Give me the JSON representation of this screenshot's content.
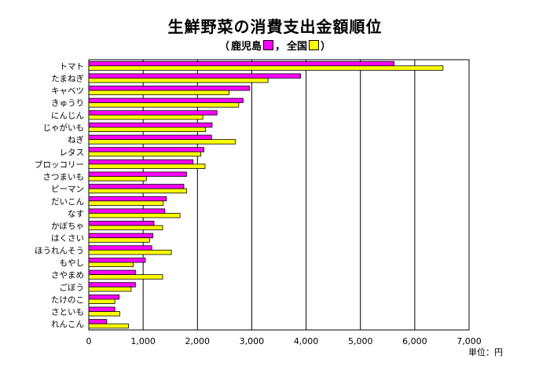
{
  "chart_data": {
    "type": "bar",
    "orientation": "horizontal",
    "title": "生鮮野菜の消費支出金額順位",
    "subtitle_open": "（",
    "subtitle_series1": "鹿児島",
    "subtitle_sep": "，",
    "subtitle_series2": "全国",
    "subtitle_close": "）",
    "categories": [
      "トマト",
      "たまねぎ",
      "キャベツ",
      "きゅうり",
      "にんじん",
      "じゃがいも",
      "ねぎ",
      "レタス",
      "ブロッコリー",
      "さつまいも",
      "ピーマン",
      "だいこん",
      "なす",
      "かぼちゃ",
      "はくさい",
      "ほうれんそう",
      "もやし",
      "さやまめ",
      "ごぼう",
      "たけのこ",
      "さといも",
      "れんこん"
    ],
    "series": [
      {
        "name": "鹿児島",
        "color": "#ff00ff",
        "values": [
          5620,
          3900,
          2960,
          2840,
          2360,
          2270,
          2260,
          2120,
          1920,
          1800,
          1750,
          1430,
          1400,
          1200,
          1180,
          1160,
          1040,
          860,
          860,
          560,
          480,
          330
        ]
      },
      {
        "name": "全国",
        "color": "#ffff00",
        "values": [
          6520,
          3300,
          2580,
          2760,
          2100,
          2150,
          2700,
          2060,
          2140,
          1060,
          1800,
          1370,
          1680,
          1360,
          1120,
          1520,
          820,
          1360,
          780,
          480,
          570,
          730
        ]
      }
    ],
    "xlim": [
      0,
      7000
    ],
    "ticks": [
      "0",
      "1,000",
      "2,000",
      "3,000",
      "4,000",
      "5,000",
      "6,000",
      "7,000"
    ],
    "unit_label": "単位：円",
    "grid": true
  }
}
